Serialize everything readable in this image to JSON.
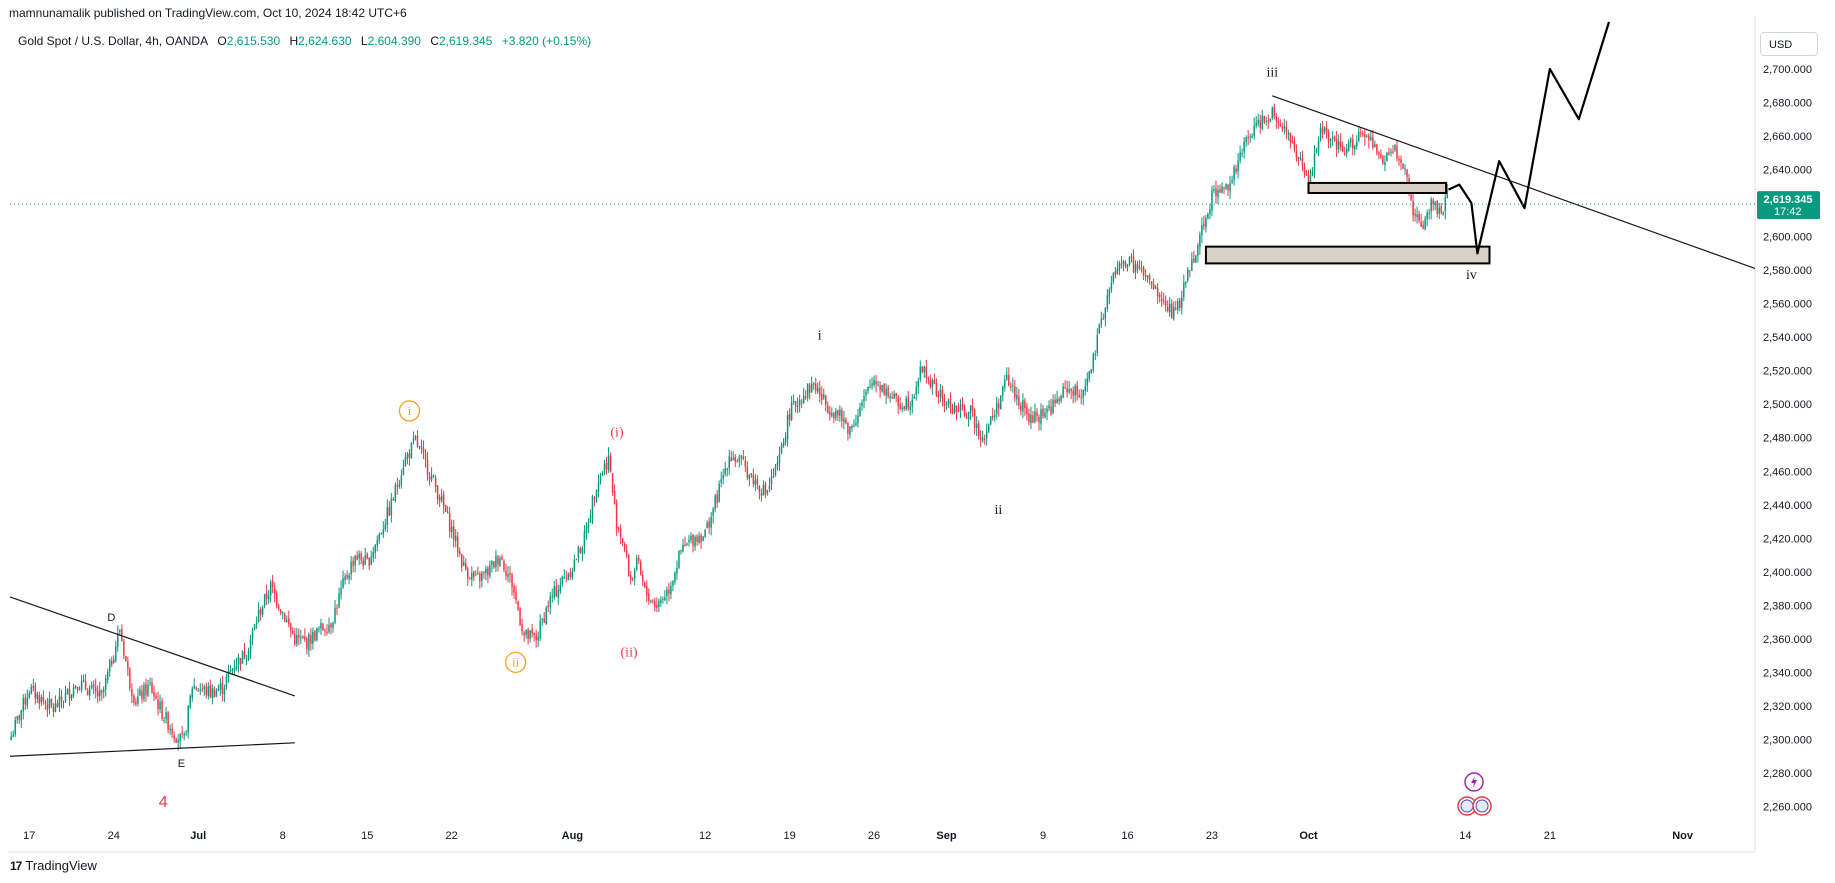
{
  "header": {
    "published": "mamnunamalik published on TradingView.com, Oct 10, 2024 18:42 UTC+6",
    "symbol": "Gold Spot / U.S. Dollar, 4h, OANDA",
    "o_label": "O",
    "o_value": "2,615.530",
    "h_label": "H",
    "h_value": "2,624.630",
    "l_label": "L",
    "l_value": "2,604.390",
    "c_label": "C",
    "c_value": "2,619.345",
    "change": "+3.820 (+0.15%)",
    "currency": "USD"
  },
  "footer": {
    "logo_mark": "17",
    "brand": "TradingView"
  },
  "colors": {
    "up": "#089981",
    "down": "#f23645",
    "orange": "#f7a325",
    "red_label": "#f23645",
    "zone_fill": "#d9d1c7",
    "price_tag": "#089981"
  },
  "chart_data": {
    "type": "candlestick",
    "timeframe": "4h",
    "y_ticks": [
      "2,700.000",
      "2,680.000",
      "2,660.000",
      "2,640.000",
      "2,620.000",
      "2,600.000",
      "2,580.000",
      "2,560.000",
      "2,540.000",
      "2,520.000",
      "2,500.000",
      "2,480.000",
      "2,460.000",
      "2,440.000",
      "2,420.000",
      "2,400.000",
      "2,380.000",
      "2,360.000",
      "2,340.000",
      "2,320.000",
      "2,300.000",
      "2,280.000",
      "2,260.000"
    ],
    "ylim": [
      2246,
      2728
    ],
    "x_ticks": [
      {
        "label": "17",
        "day": 0,
        "bold": false
      },
      {
        "label": "24",
        "day": 7,
        "bold": false
      },
      {
        "label": "Jul",
        "day": 14,
        "bold": true
      },
      {
        "label": "8",
        "day": 21,
        "bold": false
      },
      {
        "label": "15",
        "day": 28,
        "bold": false
      },
      {
        "label": "22",
        "day": 35,
        "bold": false
      },
      {
        "label": "Aug",
        "day": 45,
        "bold": true
      },
      {
        "label": "12",
        "day": 56,
        "bold": false
      },
      {
        "label": "19",
        "day": 63,
        "bold": false
      },
      {
        "label": "26",
        "day": 70,
        "bold": false
      },
      {
        "label": "Sep",
        "day": 76,
        "bold": true
      },
      {
        "label": "9",
        "day": 84,
        "bold": false
      },
      {
        "label": "16",
        "day": 91,
        "bold": false
      },
      {
        "label": "23",
        "day": 98,
        "bold": false
      },
      {
        "label": "Oct",
        "day": 106,
        "bold": true
      },
      {
        "label": "14",
        "day": 119,
        "bold": false
      },
      {
        "label": "21",
        "day": 126,
        "bold": false
      },
      {
        "label": "Nov",
        "day": 137,
        "bold": true
      }
    ],
    "xlim_days": [
      -1.6,
      143
    ],
    "price_path": [
      [
        -1.5,
        2302
      ],
      [
        0,
        2330
      ],
      [
        2,
        2318
      ],
      [
        4,
        2334
      ],
      [
        6,
        2325
      ],
      [
        7,
        2352
      ],
      [
        7.5,
        2366
      ],
      [
        8.3,
        2335
      ],
      [
        8.8,
        2323
      ],
      [
        10,
        2332
      ],
      [
        11,
        2316
      ],
      [
        12,
        2304
      ],
      [
        12.8,
        2298
      ],
      [
        13.5,
        2332
      ],
      [
        15,
        2328
      ],
      [
        16,
        2331
      ],
      [
        17,
        2345
      ],
      [
        18,
        2352
      ],
      [
        19,
        2375
      ],
      [
        20,
        2391
      ],
      [
        21,
        2376
      ],
      [
        22,
        2360
      ],
      [
        23,
        2358
      ],
      [
        24,
        2365
      ],
      [
        25,
        2370
      ],
      [
        26,
        2392
      ],
      [
        27,
        2410
      ],
      [
        28,
        2405
      ],
      [
        29,
        2422
      ],
      [
        30,
        2440
      ],
      [
        31,
        2465
      ],
      [
        32,
        2478
      ],
      [
        33,
        2462
      ],
      [
        34,
        2445
      ],
      [
        35,
        2425
      ],
      [
        36,
        2403
      ],
      [
        37,
        2395
      ],
      [
        38,
        2400
      ],
      [
        39,
        2410
      ],
      [
        40,
        2393
      ],
      [
        41,
        2362
      ],
      [
        42,
        2360
      ],
      [
        43,
        2381
      ],
      [
        44,
        2393
      ],
      [
        45,
        2403
      ],
      [
        46,
        2420
      ],
      [
        47,
        2453
      ],
      [
        48,
        2468
      ],
      [
        48.6,
        2432
      ],
      [
        49.2,
        2418
      ],
      [
        49.8,
        2395
      ],
      [
        50.4,
        2405
      ],
      [
        51,
        2388
      ],
      [
        52,
        2380
      ],
      [
        53,
        2390
      ],
      [
        54,
        2412
      ],
      [
        55,
        2420
      ],
      [
        56,
        2423
      ],
      [
        57,
        2445
      ],
      [
        58,
        2470
      ],
      [
        59,
        2465
      ],
      [
        60,
        2455
      ],
      [
        61,
        2447
      ],
      [
        62,
        2462
      ],
      [
        63,
        2495
      ],
      [
        64,
        2505
      ],
      [
        65,
        2512
      ],
      [
        66,
        2500
      ],
      [
        67,
        2494
      ],
      [
        68,
        2485
      ],
      [
        69,
        2500
      ],
      [
        70,
        2515
      ],
      [
        71,
        2508
      ],
      [
        72,
        2500
      ],
      [
        73,
        2502
      ],
      [
        74,
        2522
      ],
      [
        75,
        2509
      ],
      [
        76,
        2500
      ],
      [
        77,
        2496
      ],
      [
        78,
        2495
      ],
      [
        79,
        2480
      ],
      [
        80,
        2495
      ],
      [
        81,
        2515
      ],
      [
        82,
        2502
      ],
      [
        83,
        2490
      ],
      [
        84,
        2495
      ],
      [
        85,
        2500
      ],
      [
        86,
        2510
      ],
      [
        87,
        2505
      ],
      [
        88,
        2520
      ],
      [
        89,
        2555
      ],
      [
        90,
        2580
      ],
      [
        91,
        2585
      ],
      [
        92,
        2580
      ],
      [
        93,
        2570
      ],
      [
        94,
        2560
      ],
      [
        95,
        2553
      ],
      [
        96,
        2578
      ],
      [
        97,
        2600
      ],
      [
        98,
        2625
      ],
      [
        99,
        2628
      ],
      [
        100,
        2640
      ],
      [
        101,
        2660
      ],
      [
        102,
        2669
      ],
      [
        103,
        2675
      ],
      [
        104,
        2665
      ],
      [
        105,
        2650
      ],
      [
        106,
        2630
      ],
      [
        107,
        2665
      ],
      [
        108,
        2655
      ],
      [
        109,
        2650
      ],
      [
        110,
        2660
      ],
      [
        111,
        2658
      ],
      [
        112,
        2645
      ],
      [
        113,
        2652
      ],
      [
        114,
        2640
      ],
      [
        114.8,
        2612
      ],
      [
        115.5,
        2608
      ],
      [
        116.2,
        2620
      ],
      [
        117,
        2615
      ],
      [
        117.6,
        2628
      ]
    ],
    "last_price": "2,619.345",
    "last_price_value": 2619.345,
    "countdown": "17:42",
    "trendlines": [
      {
        "name": "triangle-upper-line",
        "from": [
          -1.6,
          2385
        ],
        "to": [
          22,
          2326
        ]
      },
      {
        "name": "triangle-lower-line",
        "from": [
          -1.6,
          2290
        ],
        "to": [
          22,
          2298
        ]
      },
      {
        "name": "wedge-resistance-line",
        "from": [
          103,
          2684
        ],
        "to": [
          143,
          2581
        ]
      }
    ],
    "zones": [
      {
        "name": "upper-supply-zone",
        "x0": 106,
        "x1": 117.4,
        "y0": 2632,
        "y1": 2626
      },
      {
        "name": "lower-demand-zone",
        "x0": 97.5,
        "x1": 121,
        "y0": 2594,
        "y1": 2584
      }
    ],
    "projection": [
      [
        117.6,
        2628
      ],
      [
        118.5,
        2631
      ],
      [
        119.5,
        2620
      ],
      [
        120,
        2590
      ],
      [
        121.8,
        2645
      ],
      [
        123.9,
        2617
      ],
      [
        126,
        2700
      ],
      [
        128.4,
        2670
      ],
      [
        130.9,
        2728
      ]
    ],
    "wave_labels": [
      {
        "text": "iii",
        "x": 103,
        "y": 2698,
        "style": "plain"
      },
      {
        "text": "iv",
        "x": 119.5,
        "y": 2577,
        "style": "plain"
      },
      {
        "text": "i",
        "x": 65.5,
        "y": 2541,
        "style": "plain"
      },
      {
        "text": "ii",
        "x": 80.3,
        "y": 2437,
        "style": "plain"
      },
      {
        "text": "(i)",
        "x": 48.7,
        "y": 2483,
        "style": "red"
      },
      {
        "text": "(ii)",
        "x": 49.7,
        "y": 2352,
        "style": "red"
      },
      {
        "text": "i",
        "x": 31.5,
        "y": 2496,
        "style": "orange-circle"
      },
      {
        "text": "ii",
        "x": 40.3,
        "y": 2346,
        "style": "orange-circle"
      },
      {
        "text": "D",
        "x": 6.8,
        "y": 2373,
        "style": "small"
      },
      {
        "text": "E",
        "x": 12.6,
        "y": 2286,
        "style": "small"
      },
      {
        "text": "4",
        "x": 11.1,
        "y": 2262,
        "style": "red-big"
      }
    ]
  }
}
